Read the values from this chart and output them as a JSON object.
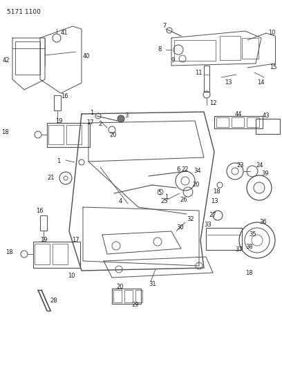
{
  "title": "5171 1100",
  "bg_color": "#ffffff",
  "line_color": "#4a4a4a",
  "text_color": "#1a1a1a",
  "fig_width": 4.08,
  "fig_height": 5.33,
  "dpi": 100
}
